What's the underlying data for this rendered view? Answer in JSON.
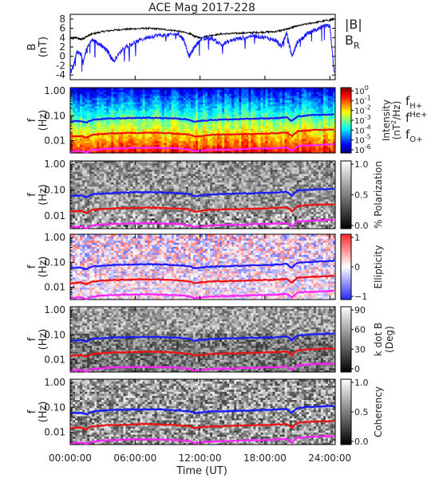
{
  "chart_data": [
    {
      "type": "line",
      "title": "ACE Mag 2017-228",
      "ylabel": "B",
      "yunit": "(nT)",
      "yticks": [
        8,
        6,
        4,
        2,
        0,
        -2,
        -4
      ],
      "ylim": [
        -5,
        9
      ],
      "xlim_hours": [
        0,
        24.5
      ],
      "series": [
        {
          "name": "|B|",
          "color": "#000000",
          "x": [
            0,
            0.5,
            1,
            1.5,
            2,
            3,
            4,
            5,
            6,
            7,
            8,
            9,
            10,
            11,
            11.5,
            12,
            13,
            14,
            15,
            16,
            17,
            18,
            19,
            20,
            20.5,
            21,
            22,
            23,
            24,
            24.4
          ],
          "y": [
            3.8,
            4.0,
            3.6,
            4.2,
            4.8,
            5.3,
            5.6,
            5.8,
            5.9,
            6.0,
            5.9,
            5.7,
            5.4,
            4.9,
            4.3,
            4.0,
            4.5,
            4.8,
            4.9,
            5.0,
            5.1,
            5.2,
            5.3,
            5.8,
            6.2,
            6.5,
            7.0,
            7.4,
            7.8,
            8.0
          ]
        },
        {
          "name": "B",
          "name_sub": "R",
          "color": "#1a1aff",
          "x": [
            0,
            0.3,
            0.6,
            1,
            1.2,
            1.5,
            2,
            2.5,
            3,
            3.5,
            4,
            5,
            6,
            7,
            8,
            9,
            10,
            10.5,
            11,
            11.5,
            12,
            13,
            14,
            15,
            16,
            17,
            18,
            19,
            19.5,
            20,
            20.5,
            21,
            21.5,
            22,
            22.5,
            23,
            23.5,
            24,
            24.4
          ],
          "y": [
            -3.5,
            -2.0,
            1.0,
            0.5,
            -1.5,
            1.5,
            3.5,
            3.0,
            2.0,
            1.0,
            -1.0,
            2.0,
            3.0,
            4.0,
            4.5,
            4.5,
            4.8,
            3.5,
            0.0,
            2.0,
            3.5,
            4.0,
            2.5,
            3.5,
            4.0,
            4.5,
            4.0,
            3.5,
            2.0,
            5.0,
            0.0,
            3.0,
            4.0,
            5.0,
            5.5,
            6.0,
            6.5,
            6.5,
            -3.5
          ]
        }
      ]
    },
    {
      "type": "heatmap",
      "ylabel": "f",
      "yunit": "(Hz)",
      "yticks": [
        "1.00",
        "0.10",
        "0.01"
      ],
      "colorbar": {
        "label": "Intensity",
        "unit_base": "(nT",
        "unit_exp": "2",
        "unit_tail": "/Hz)",
        "ticks": [
          {
            "b": "10",
            "e": "0"
          },
          {
            "b": "10",
            "e": "-1"
          },
          {
            "b": "10",
            "e": "-2"
          },
          {
            "b": "10",
            "e": "-3"
          },
          {
            "b": "10",
            "e": "-4"
          },
          {
            "b": "10",
            "e": "-5"
          },
          {
            "b": "10",
            "e": "-6"
          }
        ],
        "scale": "jet"
      },
      "legend": [
        {
          "base": "f",
          "sub": "H+",
          "sup": "",
          "color": "#2a2aff"
        },
        {
          "base": "f",
          "sub": "",
          "sup": "He+",
          "color": "#dd1a1a"
        },
        {
          "base": "f",
          "sub": "O+",
          "sup": "",
          "color": "#ee22ee"
        }
      ]
    },
    {
      "type": "heatmap",
      "ylabel": "f",
      "yunit": "(Hz)",
      "yticks": [
        "1.00",
        "0.10",
        "0.01"
      ],
      "colorbar": {
        "label": "% Polarization",
        "ticks": [
          "1.0",
          "0.5",
          "0.0"
        ],
        "scale": "gray"
      }
    },
    {
      "type": "heatmap",
      "ylabel": "f",
      "yunit": "(Hz)",
      "yticks": [
        "1.00",
        "0.10",
        "0.01"
      ],
      "colorbar": {
        "label": "Ellipticity",
        "ticks": [
          "1",
          "0",
          "−1"
        ],
        "scale": "bwr"
      }
    },
    {
      "type": "heatmap",
      "ylabel": "f",
      "yunit": "(Hz)",
      "yticks": [
        "1.00",
        "0.10",
        "0.01"
      ],
      "colorbar": {
        "label": "k dot B",
        "label2": "(Deg)",
        "ticks": [
          "90",
          "60",
          "30",
          "0"
        ],
        "scale": "gray"
      }
    },
    {
      "type": "heatmap",
      "ylabel": "f",
      "yunit": "(Hz)",
      "yticks": [
        "1.00",
        "0.10",
        "0.01"
      ],
      "colorbar": {
        "label": "Coherency",
        "ticks": [
          "1.0",
          "0.5",
          "0.0"
        ],
        "scale": "gray"
      }
    }
  ],
  "gyro_lines": {
    "x": [
      0,
      1,
      1.5,
      2,
      3,
      4,
      5,
      6,
      7,
      8,
      9,
      10,
      11,
      11.5,
      12,
      13,
      14,
      15,
      16,
      17,
      18,
      19,
      20,
      20.5,
      21,
      22,
      23,
      24,
      24.4
    ],
    "fH": [
      0.058,
      0.062,
      0.052,
      0.068,
      0.074,
      0.078,
      0.08,
      0.082,
      0.083,
      0.082,
      0.08,
      0.076,
      0.07,
      0.058,
      0.062,
      0.068,
      0.07,
      0.072,
      0.074,
      0.076,
      0.078,
      0.08,
      0.086,
      0.06,
      0.095,
      0.103,
      0.108,
      0.112,
      0.114
    ],
    "fHe": [
      0.0145,
      0.0155,
      0.013,
      0.017,
      0.0185,
      0.0195,
      0.02,
      0.0205,
      0.021,
      0.0205,
      0.02,
      0.019,
      0.0175,
      0.0145,
      0.0155,
      0.017,
      0.0175,
      0.018,
      0.0185,
      0.019,
      0.0195,
      0.02,
      0.0215,
      0.015,
      0.024,
      0.026,
      0.027,
      0.028,
      0.0285
    ],
    "fO": [
      0.0036,
      0.0039,
      0.0033,
      0.0042,
      0.0046,
      0.0049,
      0.005,
      0.0051,
      0.0052,
      0.0051,
      0.005,
      0.0048,
      0.0044,
      0.0036,
      0.0039,
      0.0042,
      0.0044,
      0.0045,
      0.0046,
      0.0048,
      0.0049,
      0.005,
      0.0054,
      0.0038,
      0.006,
      0.0065,
      0.0068,
      0.007,
      0.0071
    ]
  },
  "xaxis": {
    "ticks": [
      "00:00:00",
      "06:00:00",
      "12:00:00",
      "18:00:00",
      "24:00:00"
    ],
    "tick_hours": [
      0,
      6,
      12,
      18,
      24
    ],
    "label": "Time (UT)"
  }
}
